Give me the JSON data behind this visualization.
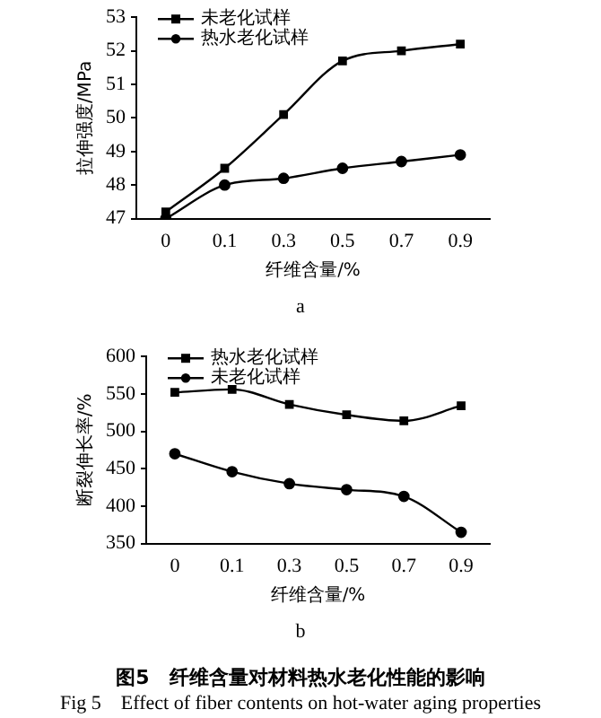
{
  "chart_data": [
    {
      "type": "line",
      "categories": [
        "0",
        "0.1",
        "0.3",
        "0.5",
        "0.7",
        "0.9"
      ],
      "xlabel": "纤维含量/%",
      "ylabel": "拉伸强度/MPa",
      "ylim": [
        47,
        53
      ],
      "yticks": [
        47,
        48,
        49,
        50,
        51,
        52,
        53
      ],
      "grid": false,
      "legend": "top left",
      "line_style": "solid",
      "annotations": [
        "a"
      ],
      "series": [
        {
          "name": "未老化试样",
          "color": "#000000",
          "marker": "square",
          "values": [
            47.2,
            48.5,
            50.1,
            51.7,
            52.0,
            52.2
          ]
        },
        {
          "name": "热水老化试样",
          "color": "#000000",
          "marker": "circle",
          "values": [
            47.0,
            48.0,
            48.2,
            48.5,
            48.7,
            48.9
          ]
        }
      ]
    },
    {
      "type": "line",
      "categories": [
        "0",
        "0.1",
        "0.3",
        "0.5",
        "0.7",
        "0.9"
      ],
      "xlabel": "纤维含量/%",
      "ylabel": "断裂伸长率/%",
      "ylim": [
        350,
        600
      ],
      "yticks": [
        350,
        400,
        450,
        500,
        550,
        600
      ],
      "grid": false,
      "legend": "top left",
      "line_style": "solid",
      "annotations": [
        "b",
        "图5　纤维含量对材料热水老化性能的影响",
        "Fig 5　Effect of fiber contents on hot-water aging properties"
      ],
      "series": [
        {
          "name": "热水老化试样",
          "color": "#000000",
          "marker": "square",
          "values": [
            552,
            556,
            536,
            522,
            514,
            534
          ]
        },
        {
          "name": "未老化试样",
          "color": "#000000",
          "marker": "circle",
          "values": [
            470,
            446,
            430,
            422,
            413,
            365
          ]
        }
      ]
    }
  ]
}
